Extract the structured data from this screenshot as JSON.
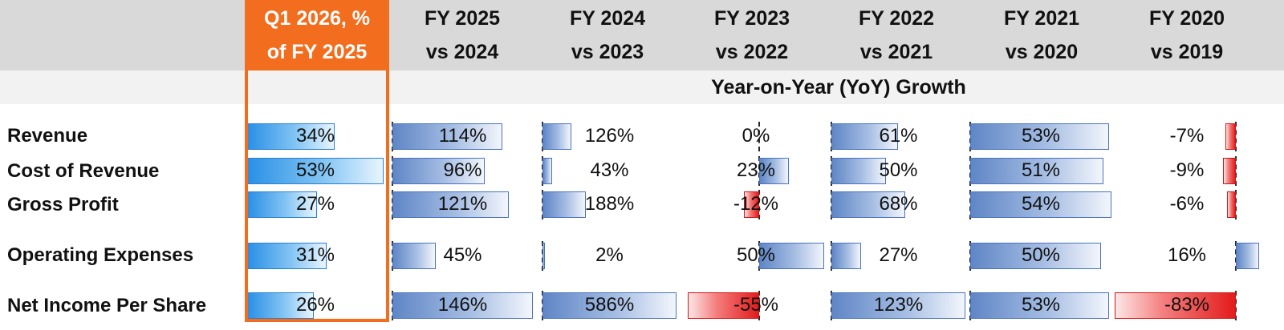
{
  "columns": [
    {
      "line1": "Q1 2026, %",
      "line2": "of FY 2025",
      "highlight": true
    },
    {
      "line1": "FY 2025",
      "line2": "vs 2024"
    },
    {
      "line1": "FY 2024",
      "line2": "vs 2023"
    },
    {
      "line1": "FY 2023",
      "line2": "vs 2022"
    },
    {
      "line1": "FY 2022",
      "line2": "vs 2021"
    },
    {
      "line1": "FY 2021",
      "line2": "vs 2020"
    },
    {
      "line1": "FY 2020",
      "line2": "vs 2019"
    }
  ],
  "subtitle": "Year-on-Year (YoY) Growth",
  "rows": [
    {
      "label": "Revenue"
    },
    {
      "label": "Cost of Revenue"
    },
    {
      "label": "Gross Profit"
    },
    {
      "label": "Operating Expenses"
    },
    {
      "label": "Net Income Per Share"
    }
  ],
  "colors": {
    "highlight": "#f26d1d",
    "positive": "#5f86c6",
    "q1_positive": "#2a90e6",
    "negative": "#e31b1b"
  },
  "chart_data": {
    "type": "table",
    "categories": [
      "Revenue",
      "Cost of Revenue",
      "Gross Profit",
      "Operating Expenses",
      "Net Income Per Share"
    ],
    "series": [
      {
        "name": "Q1 2026, % of FY 2025",
        "values": [
          34,
          53,
          27,
          31,
          26
        ],
        "labels": [
          "34%",
          "53%",
          "27%",
          "31%",
          "26%"
        ]
      },
      {
        "name": "FY 2025 vs 2024",
        "values": [
          114,
          96,
          121,
          45,
          146
        ],
        "labels": [
          "114%",
          "96%",
          "121%",
          "45%",
          "146%"
        ]
      },
      {
        "name": "FY 2024 vs 2023",
        "values": [
          126,
          43,
          188,
          2,
          586
        ],
        "labels": [
          "126%",
          "43%",
          "188%",
          "2%",
          "586%"
        ]
      },
      {
        "name": "FY 2023 vs 2022",
        "values": [
          0,
          23,
          -12,
          50,
          -55
        ],
        "labels": [
          "0%",
          "23%",
          "-12%",
          "50%",
          "-55%"
        ]
      },
      {
        "name": "FY 2022 vs 2021",
        "values": [
          61,
          50,
          68,
          27,
          123
        ],
        "labels": [
          "61%",
          "50%",
          "68%",
          "27%",
          "123%"
        ]
      },
      {
        "name": "FY 2021 vs 2020",
        "values": [
          53,
          51,
          54,
          50,
          53
        ],
        "labels": [
          "53%",
          "51%",
          "54%",
          "50%",
          "53%"
        ]
      },
      {
        "name": "FY 2020 vs 2019",
        "values": [
          -7,
          -9,
          -6,
          16,
          -83
        ],
        "labels": [
          "-7%",
          "-9%",
          "-6%",
          "16%",
          "-83%"
        ]
      }
    ]
  }
}
